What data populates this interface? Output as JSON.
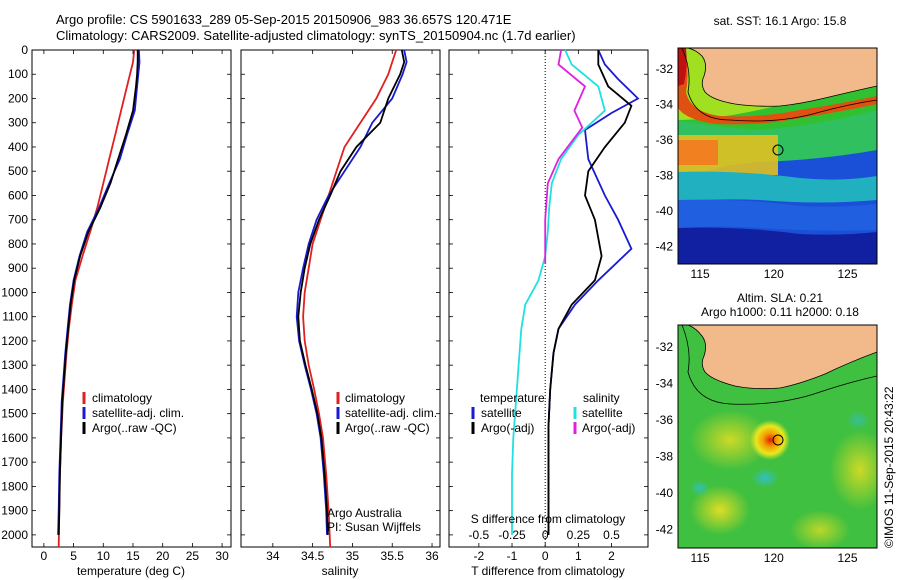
{
  "header": {
    "line1": "Argo profile: CS 5901633_289 05-Sep-2015 20150906_983 36.657S 120.471E",
    "line2": "Climatology: CARS2009. Satellite-adjusted climatology: synTS_20150904.nc (1.7d earlier)"
  },
  "footer": {
    "stamp": "©IMOS 11-Sep-2015 20:43:22"
  },
  "colors": {
    "climatology": "#e02020",
    "satellite": "#1a1ad0",
    "argo": "#000000",
    "sal_satellite": "#20e0e0",
    "sal_argo": "#e020e0",
    "land": "#f2b98a"
  },
  "chart_data": [
    {
      "type": "line",
      "name": "temperature",
      "xlabel": "temperature (deg C)",
      "ylabel": "",
      "xlim": [
        -2,
        31.5
      ],
      "ylim": [
        2050,
        0
      ],
      "xticks": [
        0,
        5,
        10,
        15,
        20,
        25,
        30
      ],
      "yticks": [
        0,
        100,
        200,
        300,
        400,
        500,
        600,
        700,
        800,
        900,
        1000,
        1100,
        1200,
        1300,
        1400,
        1500,
        1600,
        1700,
        1800,
        1900,
        2000
      ],
      "legend": [
        "climatology",
        "satellite-adj. clim.",
        "Argo(..raw -QC)"
      ],
      "legend_position": "lower-left",
      "series": [
        {
          "name": "climatology",
          "color": "#e02020",
          "x": [
            15.2,
            15.0,
            14.5,
            14.0,
            13.0,
            12.0,
            11.0,
            10.0,
            9.0,
            7.8,
            6.5,
            5.3,
            4.7,
            4.2,
            3.8,
            3.5,
            3.2,
            2.9,
            2.7,
            2.6,
            2.5
          ],
          "y": [
            0,
            50,
            100,
            150,
            250,
            350,
            450,
            550,
            650,
            750,
            850,
            950,
            1050,
            1150,
            1250,
            1350,
            1450,
            1600,
            1750,
            1900,
            2050
          ]
        },
        {
          "name": "satellite-adj. clim.",
          "color": "#1a1ad0",
          "x": [
            16.0,
            16.1,
            15.9,
            15.7,
            15.3,
            14.0,
            12.8,
            11.0,
            9.3,
            7.3,
            6.0,
            5.0,
            4.4,
            4.0,
            3.6,
            3.3,
            3.0,
            2.8,
            2.6,
            2.5,
            2.4
          ],
          "y": [
            0,
            50,
            100,
            150,
            250,
            350,
            450,
            550,
            650,
            750,
            850,
            950,
            1050,
            1150,
            1250,
            1350,
            1450,
            1600,
            1750,
            1900,
            2000
          ]
        },
        {
          "name": "Argo(..raw -QC)",
          "color": "#000000",
          "x": [
            15.8,
            15.8,
            15.7,
            15.5,
            15.0,
            13.8,
            12.5,
            11.2,
            9.5,
            7.5,
            6.1,
            5.1,
            4.5,
            4.1,
            3.7,
            3.4,
            3.1,
            2.9,
            2.7,
            2.6,
            2.5
          ],
          "y": [
            0,
            50,
            100,
            150,
            250,
            350,
            450,
            550,
            650,
            750,
            850,
            950,
            1050,
            1150,
            1250,
            1350,
            1450,
            1600,
            1750,
            1900,
            2000
          ]
        }
      ]
    },
    {
      "type": "line",
      "name": "salinity",
      "xlabel": "salinity",
      "ylabel": "",
      "xlim": [
        33.6,
        36.1
      ],
      "ylim": [
        2050,
        0
      ],
      "xticks": [
        34,
        34.5,
        35,
        35.5,
        36
      ],
      "legend": [
        "climatology",
        "satellite-adj. clim.",
        "Argo(..raw -QC)"
      ],
      "legend_position": "lower-right",
      "annotation": [
        "Argo Australia",
        "PI: Susan Wijffels"
      ],
      "series": [
        {
          "name": "climatology",
          "color": "#e02020",
          "x": [
            35.55,
            35.5,
            35.45,
            35.3,
            35.1,
            34.9,
            34.8,
            34.7,
            34.6,
            34.5,
            34.45,
            34.4,
            34.38,
            34.4,
            34.45,
            34.52,
            34.58,
            34.63,
            34.67,
            34.7,
            34.72
          ],
          "y": [
            0,
            50,
            100,
            200,
            300,
            400,
            500,
            600,
            700,
            800,
            900,
            1000,
            1100,
            1200,
            1300,
            1400,
            1500,
            1600,
            1750,
            1900,
            2050
          ]
        },
        {
          "name": "satellite-adj. clim.",
          "color": "#1a1ad0",
          "x": [
            35.65,
            35.68,
            35.63,
            35.5,
            35.25,
            35.1,
            34.9,
            34.7,
            34.55,
            34.45,
            34.38,
            34.32,
            34.3,
            34.33,
            34.4,
            34.48,
            34.55,
            34.6,
            34.64,
            34.67,
            34.68
          ],
          "y": [
            0,
            50,
            100,
            200,
            300,
            400,
            500,
            600,
            700,
            800,
            900,
            1000,
            1100,
            1200,
            1300,
            1400,
            1500,
            1600,
            1750,
            1900,
            2000
          ]
        },
        {
          "name": "Argo(..raw -QC)",
          "color": "#000000",
          "x": [
            35.62,
            35.65,
            35.6,
            35.45,
            35.35,
            35.05,
            34.85,
            34.72,
            34.58,
            34.47,
            34.4,
            34.35,
            34.32,
            34.34,
            34.41,
            34.49,
            34.56,
            34.61,
            34.65,
            34.68,
            34.69
          ],
          "y": [
            0,
            50,
            100,
            200,
            300,
            400,
            500,
            600,
            700,
            800,
            900,
            1000,
            1100,
            1200,
            1300,
            1400,
            1500,
            1600,
            1750,
            1900,
            2000
          ]
        }
      ]
    },
    {
      "type": "line",
      "name": "difference",
      "xlabel": "T difference from climatology",
      "xlabel2": "S difference from climatology",
      "xlim": [
        -2.9,
        3.1
      ],
      "ylim": [
        2050,
        0
      ],
      "xticks_T": [
        -2,
        -1,
        0,
        1,
        2
      ],
      "xticks_S": [
        -0.5,
        -0.25,
        0,
        0.25,
        0.5
      ],
      "legend_left_title": "temperature",
      "legend_right_title": "salinity",
      "legend_left": [
        "satellite",
        "Argo(-adj)"
      ],
      "legend_right": [
        "satellite",
        "Argo(-adj)"
      ],
      "legend_position": "lower-center",
      "series": [
        {
          "name": "T satellite",
          "color": "#1a1ad0",
          "x": [
            1.6,
            1.8,
            2.2,
            2.8,
            2.0,
            1.2,
            1.3,
            1.8,
            2.2,
            2.6,
            1.6,
            0.9,
            0.4,
            0.25,
            0.15,
            0.1,
            0.1,
            0.1,
            0.1,
            0.1
          ],
          "y": [
            0,
            60,
            120,
            200,
            260,
            330,
            450,
            600,
            700,
            820,
            950,
            1050,
            1150,
            1250,
            1400,
            1550,
            1700,
            1850,
            1950,
            2000
          ]
        },
        {
          "name": "T Argo(-adj)",
          "color": "#000000",
          "x": [
            1.6,
            1.6,
            1.9,
            2.6,
            2.4,
            1.8,
            1.3,
            1.2,
            1.5,
            1.7,
            1.5,
            0.8,
            0.4,
            0.25,
            0.15,
            0.1,
            0.1,
            0.1,
            0.1,
            0.1
          ],
          "y": [
            0,
            60,
            150,
            230,
            300,
            400,
            500,
            600,
            700,
            850,
            950,
            1050,
            1150,
            1250,
            1400,
            1550,
            1700,
            1850,
            1950,
            2000
          ]
        },
        {
          "name": "S satellite",
          "color": "#20e0e0",
          "x": [
            0.15,
            0.2,
            0.4,
            0.45,
            0.25,
            0.12,
            0.05,
            0.03,
            0.02,
            0.0,
            -0.05,
            -0.15,
            -0.18,
            -0.2,
            -0.22,
            -0.24,
            -0.25,
            -0.25,
            -0.25
          ],
          "y": [
            0,
            60,
            150,
            250,
            350,
            450,
            550,
            650,
            750,
            850,
            950,
            1050,
            1150,
            1300,
            1450,
            1600,
            1750,
            1900,
            2000
          ]
        },
        {
          "name": "S Argo(-adj)",
          "color": "#e020e0",
          "x": [
            0.12,
            0.1,
            0.3,
            0.22,
            0.28,
            0.1,
            0.02,
            0.0,
            0.0,
            0.0
          ],
          "y": [
            0,
            60,
            150,
            250,
            320,
            450,
            550,
            700,
            800,
            880
          ]
        }
      ]
    },
    {
      "type": "heatmap",
      "name": "sst-map",
      "title": "sat. SST: 16.1 Argo: 15.8",
      "xlim": [
        113.5,
        127
      ],
      "ylim": [
        -43,
        -30.8
      ],
      "xticks": [
        115,
        120,
        125
      ],
      "yticks": [
        -32,
        -34,
        -36,
        -38,
        -40,
        -42
      ],
      "profile_marker": {
        "lon": 120.471,
        "lat": -36.657
      }
    },
    {
      "type": "heatmap",
      "name": "sla-map",
      "title_line1": "Altim. SLA: 0.21",
      "title_line2": "Argo h1000: 0.11 h2000: 0.18",
      "xlim": [
        113.5,
        127
      ],
      "ylim": [
        -43,
        -30.8
      ],
      "xticks": [
        115,
        120,
        125
      ],
      "yticks": [
        -32,
        -34,
        -36,
        -38,
        -40,
        -42
      ],
      "profile_marker": {
        "lon": 120.471,
        "lat": -36.657
      }
    }
  ]
}
